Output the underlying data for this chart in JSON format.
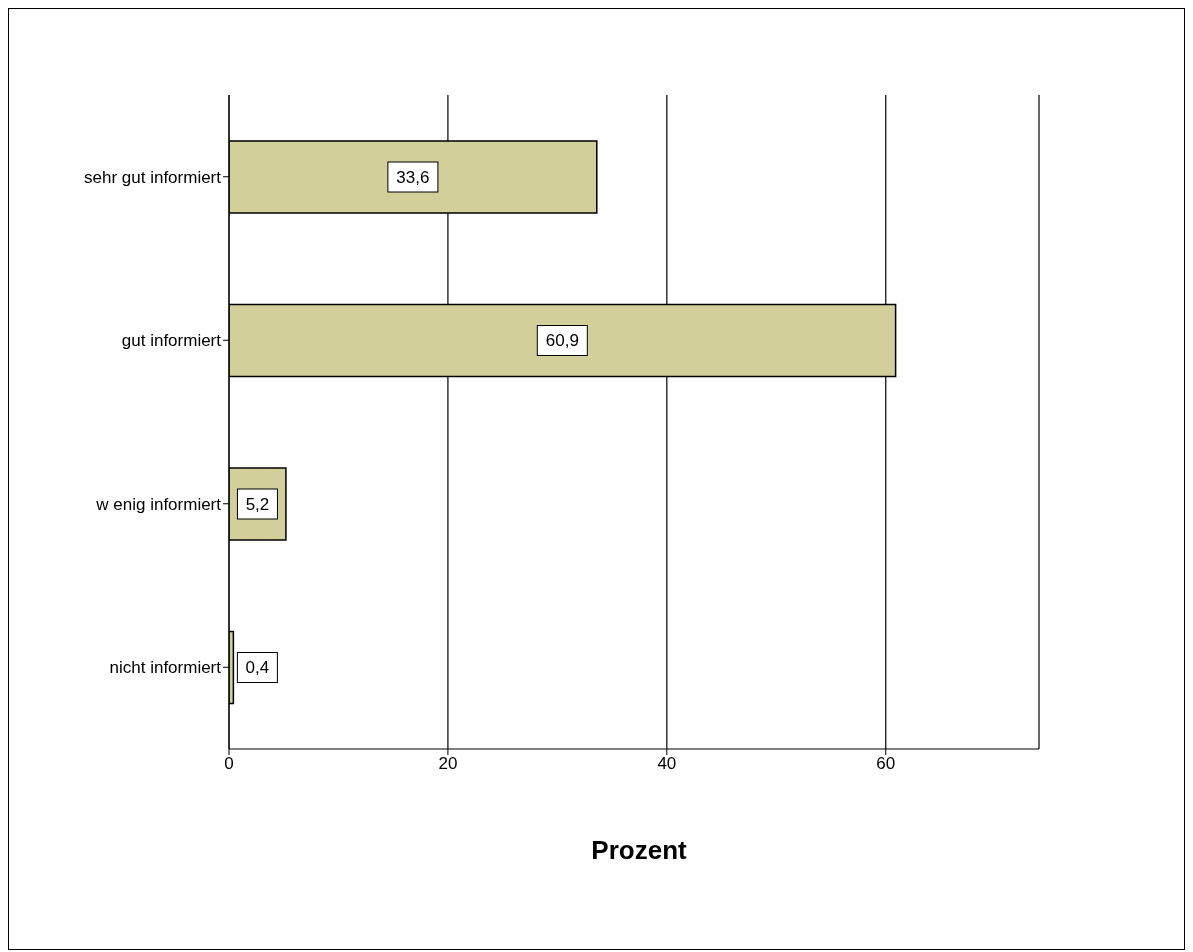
{
  "chart_data": {
    "type": "bar",
    "orientation": "horizontal",
    "xlabel": "Prozent",
    "categories": [
      "sehr gut informiert",
      "gut informiert",
      "w enig informiert",
      "nicht informiert"
    ],
    "values": [
      33.6,
      60.9,
      5.2,
      0.4
    ],
    "value_labels": [
      "33,6",
      "60,9",
      "5,2",
      "0,4"
    ],
    "color": "#d3cf9b",
    "xlim": [
      0,
      74
    ],
    "xticks": [
      0,
      20,
      40,
      60
    ],
    "grid": "x"
  }
}
